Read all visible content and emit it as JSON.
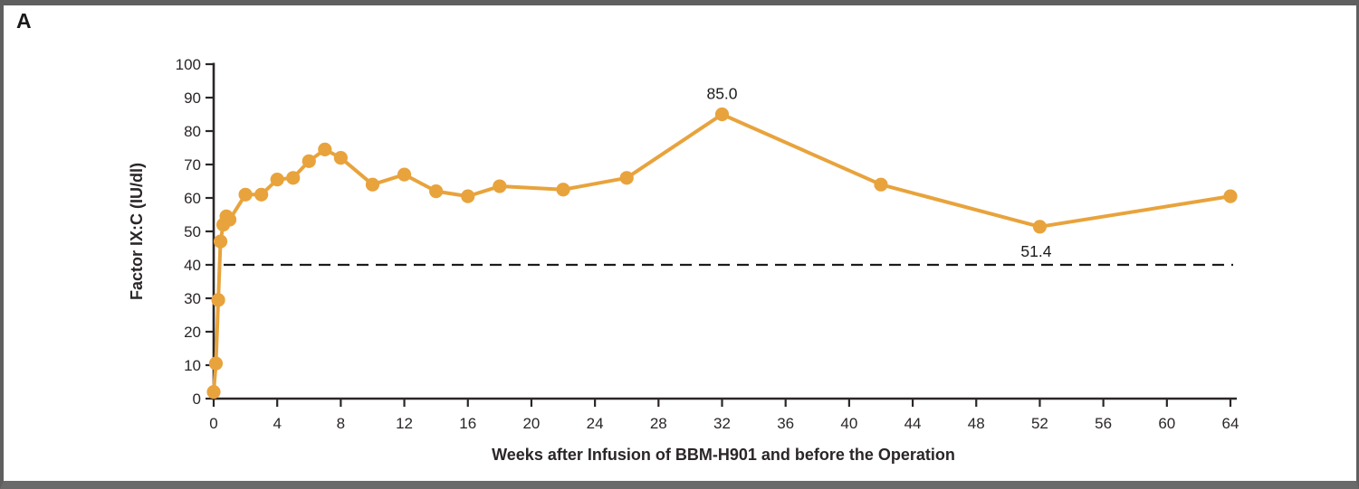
{
  "panel_label": "A",
  "colors": {
    "series": "#E8A33C",
    "axis": "#2b2627",
    "text": "#2b2627",
    "frame_border": "#5f5f5f",
    "threshold_line": "#1c1c1c",
    "background": "#ffffff"
  },
  "chart_data": {
    "type": "line",
    "title": "",
    "xlabel": "Weeks after Infusion of BBM-H901 and before the Operation",
    "ylabel": "Factor IX:C (IU/dl)",
    "xlim": [
      0,
      64
    ],
    "ylim": [
      0,
      100
    ],
    "x_ticks": [
      0,
      4,
      8,
      12,
      16,
      20,
      24,
      28,
      32,
      36,
      40,
      44,
      48,
      52,
      56,
      60,
      64
    ],
    "y_ticks": [
      0,
      10,
      20,
      30,
      40,
      50,
      60,
      70,
      80,
      90,
      100
    ],
    "grid": false,
    "legend": false,
    "threshold_line": {
      "y": 40,
      "style": "dashed"
    },
    "series": [
      {
        "name": "Factor IX:C",
        "color": "#E8A33C",
        "x": [
          0,
          0.14,
          0.29,
          0.43,
          0.6,
          0.8,
          1,
          2,
          3,
          4,
          5,
          6,
          7,
          8,
          10,
          12,
          14,
          16,
          18,
          22,
          26,
          32,
          42,
          52,
          64
        ],
        "y": [
          2,
          10.5,
          29.5,
          47,
          52,
          54.5,
          53.5,
          61,
          61,
          65.5,
          66,
          71,
          74.5,
          72,
          64,
          67,
          62,
          60.5,
          63.5,
          62.5,
          66,
          85,
          64,
          51.4,
          60.5
        ]
      }
    ],
    "annotations": [
      {
        "x": 32,
        "y": 85,
        "text": "85.0",
        "position": "above"
      },
      {
        "x": 52,
        "y": 51.4,
        "text": "51.4",
        "position": "below"
      }
    ]
  }
}
